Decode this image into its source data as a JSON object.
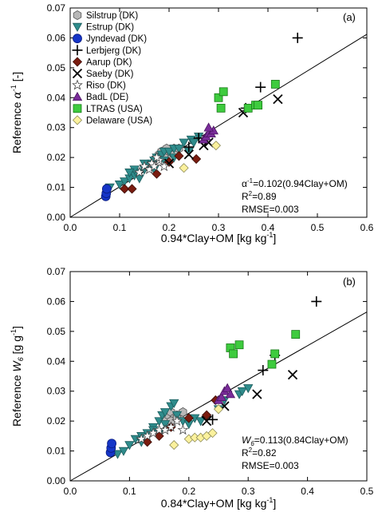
{
  "chart_data": [
    {
      "type": "scatter",
      "panel_label": "(a)",
      "xlabel": "0.94*Clay+OM [kg kg",
      "xlabel_sup": "-1",
      "xlabel_end": "]",
      "ylabel_pre": "Reference ",
      "ylabel_sym": "α",
      "ylabel_sup": "-1",
      "ylabel_post": " [-]",
      "xlim": [
        0,
        0.6
      ],
      "ylim": [
        0,
        0.07
      ],
      "xticks": [
        "0.0",
        "0.1",
        "0.2",
        "0.3",
        "0.4",
        "0.5",
        "0.6"
      ],
      "yticks": [
        "0.00",
        "0.01",
        "0.02",
        "0.03",
        "0.04",
        "0.05",
        "0.06",
        "0.07"
      ],
      "fit": {
        "slope": 0.102
      },
      "annotations": {
        "equation_lhs": "α",
        "equation_sup": "-1",
        "equation_rhs": "=0.102(0.94Clay+OM)",
        "r2_text": "R",
        "r2_sup": "2",
        "r2_val": "=0.89",
        "rmse": "RMSE=0.003"
      },
      "series": [
        {
          "name": "Silstrup (DK)",
          "marker": "hexagon",
          "color": "#b8b8b8",
          "x": [
            0.18,
            0.19,
            0.2,
            0.205,
            0.21,
            0.215,
            0.2,
            0.19,
            0.185,
            0.21,
            0.22,
            0.195
          ],
          "y": [
            0.021,
            0.022,
            0.021,
            0.022,
            0.023,
            0.022,
            0.02,
            0.02,
            0.022,
            0.021,
            0.023,
            0.023
          ]
        },
        {
          "name": "Estrup (DK)",
          "marker": "triangle-down",
          "color": "#2f8c8c",
          "x": [
            0.08,
            0.1,
            0.11,
            0.12,
            0.13,
            0.14,
            0.15,
            0.16,
            0.165,
            0.17,
            0.175,
            0.18,
            0.185,
            0.19,
            0.2,
            0.21,
            0.22,
            0.23,
            0.245,
            0.25,
            0.26,
            0.13,
            0.15,
            0.17,
            0.19,
            0.21,
            0.24,
            0.14,
            0.12
          ],
          "y": [
            0.01,
            0.011,
            0.012,
            0.013,
            0.014,
            0.015,
            0.016,
            0.017,
            0.018,
            0.019,
            0.02,
            0.02,
            0.021,
            0.022,
            0.022,
            0.023,
            0.023,
            0.025,
            0.026,
            0.025,
            0.027,
            0.016,
            0.018,
            0.016,
            0.019,
            0.02,
            0.022,
            0.013,
            0.015
          ]
        },
        {
          "name": "Jyndevad (DK)",
          "marker": "circle",
          "color": "#1535c8",
          "x": [
            0.072,
            0.073,
            0.074
          ],
          "y": [
            0.007,
            0.008,
            0.0095
          ]
        },
        {
          "name": "Lerbjerg (DK)",
          "marker": "plus",
          "color": "#000000",
          "x": [
            0.46,
            0.385,
            0.355,
            0.26,
            0.24
          ],
          "y": [
            0.06,
            0.0435,
            0.0365,
            0.0265,
            0.0235
          ]
        },
        {
          "name": "Aarup (DK)",
          "marker": "diamond",
          "color": "#7a1c10",
          "x": [
            0.11,
            0.125,
            0.175,
            0.2,
            0.22,
            0.255
          ],
          "y": [
            0.0095,
            0.0095,
            0.0145,
            0.0185,
            0.0205,
            0.0195
          ]
        },
        {
          "name": "Saeby (DK)",
          "marker": "x",
          "color": "#000000",
          "x": [
            0.35,
            0.42,
            0.24,
            0.27,
            0.28,
            0.2
          ],
          "y": [
            0.035,
            0.0395,
            0.021,
            0.024,
            0.025,
            0.018
          ]
        },
        {
          "name": "Riso (DK)",
          "marker": "star",
          "color": "#ffffff",
          "x": [
            0.14,
            0.15,
            0.16,
            0.165,
            0.17,
            0.18,
            0.175,
            0.19
          ],
          "y": [
            0.015,
            0.017,
            0.016,
            0.018,
            0.017,
            0.019,
            0.02,
            0.017
          ]
        },
        {
          "name": "BadL (DE)",
          "marker": "triangle-up",
          "color": "#7a2c9a",
          "x": [
            0.27,
            0.275,
            0.28,
            0.285,
            0.29,
            0.28
          ],
          "y": [
            0.026,
            0.027,
            0.028,
            0.028,
            0.029,
            0.03
          ]
        },
        {
          "name": "LTRAS (USA)",
          "marker": "square",
          "color": "#3ecb3e",
          "x": [
            0.3,
            0.31,
            0.36,
            0.375,
            0.38,
            0.415,
            0.305
          ],
          "y": [
            0.04,
            0.042,
            0.0365,
            0.0375,
            0.0375,
            0.0445,
            0.0365
          ]
        },
        {
          "name": "Delaware (USA)",
          "marker": "diamond",
          "color": "#fbf19d",
          "x": [
            0.23,
            0.295
          ],
          "y": [
            0.0165,
            0.024
          ]
        }
      ]
    },
    {
      "type": "scatter",
      "panel_label": "(b)",
      "xlabel": "0.84*Clay+OM [kg kg",
      "xlabel_sup": "-1",
      "xlabel_end": "]",
      "ylabel_pre": "Reference ",
      "ylabel_sym": "W",
      "ylabel_sub": "6",
      "ylabel_post": " [g g",
      "ylabel_sup": "-1",
      "ylabel_end": "]",
      "xlim": [
        0,
        0.5
      ],
      "ylim": [
        0,
        0.07
      ],
      "xticks": [
        "0.0",
        "0.1",
        "0.2",
        "0.3",
        "0.4",
        "0.5"
      ],
      "yticks": [
        "0.00",
        "0.01",
        "0.02",
        "0.03",
        "0.04",
        "0.05",
        "0.06",
        "0.07"
      ],
      "fit": {
        "slope": 0.113
      },
      "annotations": {
        "equation_lhs": "W",
        "equation_sub": "6",
        "equation_rhs": "=0.113(0.84Clay+OM)",
        "r2_text": "R",
        "r2_sup": "2",
        "r2_val": "=0.82",
        "rmse": "RMSE=0.003"
      },
      "series": [
        {
          "name": "Silstrup (DK)",
          "marker": "hexagon",
          "color": "#b8b8b8",
          "x": [
            0.16,
            0.165,
            0.17,
            0.175,
            0.18,
            0.185,
            0.19,
            0.17,
            0.18
          ],
          "y": [
            0.021,
            0.022,
            0.023,
            0.021,
            0.022,
            0.022,
            0.023,
            0.02,
            0.021
          ]
        },
        {
          "name": "Estrup (DK)",
          "marker": "triangle-down",
          "color": "#2f8c8c",
          "x": [
            0.08,
            0.09,
            0.1,
            0.11,
            0.12,
            0.13,
            0.14,
            0.15,
            0.155,
            0.16,
            0.17,
            0.175,
            0.18,
            0.19,
            0.2,
            0.21,
            0.22,
            0.25,
            0.26,
            0.285,
            0.29,
            0.3,
            0.12,
            0.14,
            0.16,
            0.15
          ],
          "y": [
            0.009,
            0.01,
            0.012,
            0.014,
            0.015,
            0.016,
            0.018,
            0.02,
            0.022,
            0.023,
            0.025,
            0.026,
            0.022,
            0.02,
            0.019,
            0.021,
            0.02,
            0.024,
            0.027,
            0.029,
            0.03,
            0.031,
            0.013,
            0.017,
            0.019,
            0.016
          ]
        },
        {
          "name": "Jyndevad (DK)",
          "marker": "circle",
          "color": "#1535c8",
          "x": [
            0.068,
            0.069,
            0.07
          ],
          "y": [
            0.0095,
            0.011,
            0.0125
          ]
        },
        {
          "name": "Lerbjerg (DK)",
          "marker": "plus",
          "color": "#000000",
          "x": [
            0.415,
            0.345,
            0.325,
            0.24,
            0.23
          ],
          "y": [
            0.06,
            0.042,
            0.037,
            0.0205,
            0.0215
          ]
        },
        {
          "name": "Aarup (DK)",
          "marker": "diamond",
          "color": "#7a1c10",
          "x": [
            0.13,
            0.15,
            0.17,
            0.2,
            0.23,
            0.245
          ],
          "y": [
            0.013,
            0.015,
            0.018,
            0.021,
            0.022,
            0.027
          ]
        },
        {
          "name": "Saeby (DK)",
          "marker": "x",
          "color": "#000000",
          "x": [
            0.315,
            0.375,
            0.23,
            0.26
          ],
          "y": [
            0.029,
            0.0355,
            0.02,
            0.025
          ]
        },
        {
          "name": "Riso (DK)",
          "marker": "star",
          "color": "#ffffff",
          "x": [
            0.12,
            0.13,
            0.14,
            0.15,
            0.16,
            0.17,
            0.18,
            0.19
          ],
          "y": [
            0.014,
            0.015,
            0.016,
            0.017,
            0.017,
            0.018,
            0.02,
            0.017
          ]
        },
        {
          "name": "BadL (DE)",
          "marker": "triangle-up",
          "color": "#7a2c9a",
          "x": [
            0.25,
            0.255,
            0.26,
            0.265,
            0.27
          ],
          "y": [
            0.027,
            0.028,
            0.03,
            0.031,
            0.029
          ]
        },
        {
          "name": "LTRAS (USA)",
          "marker": "square",
          "color": "#3ecb3e",
          "x": [
            0.27,
            0.275,
            0.285,
            0.34,
            0.345,
            0.38
          ],
          "y": [
            0.0445,
            0.0425,
            0.0455,
            0.039,
            0.0425,
            0.049
          ]
        },
        {
          "name": "Delaware (USA)",
          "marker": "diamond",
          "color": "#fbf19d",
          "x": [
            0.175,
            0.2,
            0.21,
            0.22,
            0.23,
            0.24,
            0.25
          ],
          "y": [
            0.012,
            0.014,
            0.0145,
            0.0145,
            0.015,
            0.016,
            0.024
          ]
        }
      ]
    }
  ]
}
